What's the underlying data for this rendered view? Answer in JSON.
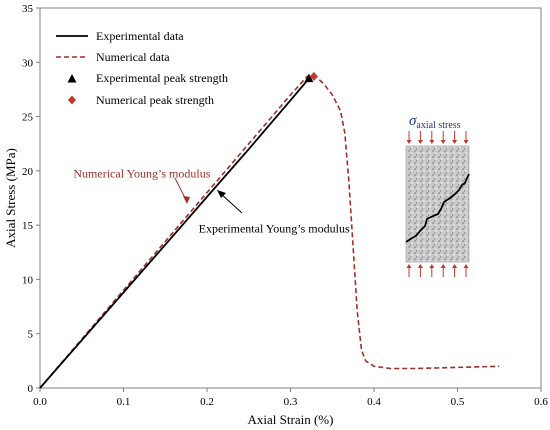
{
  "chart_data": {
    "type": "line",
    "xlabel": "Axial Strain (%)",
    "ylabel": "Axial Stress (MPa)",
    "xlim": [
      0,
      0.6
    ],
    "ylim": [
      0,
      35
    ],
    "x_ticks": [
      0.0,
      0.1,
      0.2,
      0.3,
      0.4,
      0.5,
      0.6
    ],
    "x_tick_labels": [
      "0.0",
      "0.1",
      "0.2",
      "0.3",
      "0.4",
      "0.5",
      "0.6"
    ],
    "y_ticks": [
      0,
      5,
      10,
      15,
      20,
      25,
      30,
      35
    ],
    "y_tick_labels": [
      "0",
      "5",
      "10",
      "15",
      "20",
      "25",
      "30",
      "35"
    ],
    "grid": false,
    "legend_position": "top-left",
    "series": [
      {
        "name": "Experimental data",
        "style": "solid",
        "color": "#000000",
        "x": [
          0.0,
          0.05,
          0.1,
          0.15,
          0.2,
          0.25,
          0.3,
          0.322
        ],
        "y": [
          0.0,
          4.4,
          8.8,
          13.2,
          17.6,
          22.0,
          26.5,
          28.5
        ]
      },
      {
        "name": "Numerical data",
        "style": "dashed",
        "color": "#a0302a",
        "x": [
          0.0,
          0.05,
          0.1,
          0.15,
          0.2,
          0.25,
          0.3,
          0.32,
          0.33,
          0.34,
          0.35,
          0.36,
          0.365,
          0.37,
          0.375,
          0.38,
          0.385,
          0.39,
          0.4,
          0.42,
          0.45,
          0.5,
          0.55
        ],
        "y": [
          0.0,
          4.5,
          9.0,
          13.5,
          18.0,
          22.5,
          27.0,
          28.7,
          28.7,
          28.0,
          27.0,
          25.5,
          23.5,
          19.0,
          13.0,
          7.0,
          3.5,
          2.5,
          2.0,
          1.8,
          1.8,
          1.9,
          2.0
        ]
      }
    ],
    "peaks": [
      {
        "name": "Experimental peak strength",
        "marker": "triangle",
        "color": "#000000",
        "x": 0.322,
        "y": 28.5
      },
      {
        "name": "Numerical peak strength",
        "marker": "diamond",
        "color": "#c0392b",
        "x": 0.328,
        "y": 28.7
      }
    ],
    "annotations": [
      {
        "text": "Numerical Young’s modulus",
        "color": "#a0302a",
        "x": 0.04,
        "y": 19.4
      },
      {
        "text": "Experimental Young’s modulus",
        "color": "#000000",
        "x": 0.19,
        "y": 14.3
      }
    ],
    "inset": {
      "label_symbol": "σ",
      "label_sub": "axial stress",
      "label_color": "#1f3a7a",
      "arrow_color": "#c0392b",
      "crack_color": "#000000"
    }
  }
}
